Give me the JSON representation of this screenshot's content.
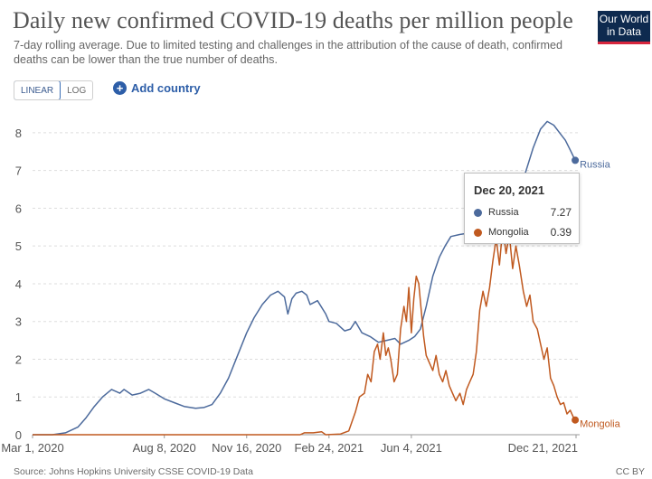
{
  "header": {
    "title": "Daily new confirmed COVID-19 deaths per million people",
    "subtitle": "7-day rolling average. Due to limited testing and challenges in the attribution of the cause of death, confirmed deaths can be lower than the true number of deaths.",
    "logo_line1": "Our World",
    "logo_line2": "in Data"
  },
  "controls": {
    "linear_label": "LINEAR",
    "log_label": "LOG",
    "add_country_label": "Add country"
  },
  "tooltip": {
    "date": "Dec 20, 2021",
    "rows": [
      {
        "name": "Russia",
        "value": "7.27",
        "color": "#4c6a9c"
      },
      {
        "name": "Mongolia",
        "value": "0.39",
        "color": "#c0591f"
      }
    ]
  },
  "footer": {
    "source": "Source: Johns Hopkins University CSSE COVID-19 Data",
    "license": "CC BY"
  },
  "chart_data": {
    "type": "line",
    "title": "Daily new confirmed COVID-19 deaths per million people",
    "xlabel": "",
    "ylabel": "",
    "ylim": [
      0,
      8.5
    ],
    "grid": "horizontal",
    "y_ticks": [
      0,
      1,
      2,
      3,
      4,
      5,
      6,
      7,
      8
    ],
    "x_ticks": [
      "Mar 1, 2020",
      "Aug 8, 2020",
      "Nov 16, 2020",
      "Feb 24, 2021",
      "Jun 4, 2021",
      "Dec 21, 2021"
    ],
    "x_tick_dates": [
      "2020-03-01",
      "2020-08-08",
      "2020-11-16",
      "2021-02-24",
      "2021-06-04",
      "2021-12-21"
    ],
    "x_range": [
      "2020-03-01",
      "2021-12-21"
    ],
    "series": [
      {
        "name": "Russia",
        "color": "#4c6a9c",
        "end_label": "Russia",
        "points": [
          [
            "2020-03-01",
            0
          ],
          [
            "2020-03-25",
            0.0
          ],
          [
            "2020-04-10",
            0.05
          ],
          [
            "2020-04-25",
            0.2
          ],
          [
            "2020-05-05",
            0.45
          ],
          [
            "2020-05-15",
            0.75
          ],
          [
            "2020-05-25",
            1.0
          ],
          [
            "2020-06-05",
            1.2
          ],
          [
            "2020-06-15",
            1.1
          ],
          [
            "2020-06-20",
            1.2
          ],
          [
            "2020-06-30",
            1.05
          ],
          [
            "2020-07-10",
            1.1
          ],
          [
            "2020-07-20",
            1.2
          ],
          [
            "2020-07-28",
            1.1
          ],
          [
            "2020-08-08",
            0.95
          ],
          [
            "2020-08-20",
            0.85
          ],
          [
            "2020-09-01",
            0.75
          ],
          [
            "2020-09-15",
            0.7
          ],
          [
            "2020-09-25",
            0.72
          ],
          [
            "2020-10-05",
            0.8
          ],
          [
            "2020-10-15",
            1.1
          ],
          [
            "2020-10-25",
            1.5
          ],
          [
            "2020-11-05",
            2.1
          ],
          [
            "2020-11-16",
            2.7
          ],
          [
            "2020-11-25",
            3.1
          ],
          [
            "2020-12-05",
            3.45
          ],
          [
            "2020-12-15",
            3.7
          ],
          [
            "2020-12-24",
            3.8
          ],
          [
            "2021-01-01",
            3.65
          ],
          [
            "2021-01-05",
            3.2
          ],
          [
            "2021-01-10",
            3.6
          ],
          [
            "2021-01-15",
            3.75
          ],
          [
            "2021-01-22",
            3.8
          ],
          [
            "2021-01-28",
            3.7
          ],
          [
            "2021-02-01",
            3.45
          ],
          [
            "2021-02-10",
            3.55
          ],
          [
            "2021-02-20",
            3.2
          ],
          [
            "2021-02-24",
            3.0
          ],
          [
            "2021-03-05",
            2.95
          ],
          [
            "2021-03-15",
            2.75
          ],
          [
            "2021-03-22",
            2.8
          ],
          [
            "2021-03-28",
            3.0
          ],
          [
            "2021-04-05",
            2.7
          ],
          [
            "2021-04-15",
            2.6
          ],
          [
            "2021-04-25",
            2.45
          ],
          [
            "2021-05-05",
            2.5
          ],
          [
            "2021-05-15",
            2.55
          ],
          [
            "2021-05-22",
            2.4
          ],
          [
            "2021-06-01",
            2.5
          ],
          [
            "2021-06-08",
            2.6
          ],
          [
            "2021-06-15",
            2.8
          ],
          [
            "2021-06-22",
            3.4
          ],
          [
            "2021-06-30",
            4.2
          ],
          [
            "2021-07-08",
            4.7
          ],
          [
            "2021-07-15",
            5.0
          ],
          [
            "2021-07-22",
            5.25
          ],
          [
            "2021-08-01",
            5.3
          ],
          [
            "2021-08-15",
            5.35
          ],
          [
            "2021-08-25",
            5.3
          ],
          [
            "2021-09-05",
            5.3
          ],
          [
            "2021-09-15",
            5.45
          ],
          [
            "2021-09-25",
            5.6
          ],
          [
            "2021-10-01",
            5.75
          ],
          [
            "2021-10-10",
            6.3
          ],
          [
            "2021-10-20",
            6.9
          ],
          [
            "2021-10-30",
            7.6
          ],
          [
            "2021-11-08",
            8.1
          ],
          [
            "2021-11-16",
            8.3
          ],
          [
            "2021-11-24",
            8.2
          ],
          [
            "2021-12-01",
            8.0
          ],
          [
            "2021-12-08",
            7.8
          ],
          [
            "2021-12-15",
            7.5
          ],
          [
            "2021-12-20",
            7.27
          ]
        ]
      },
      {
        "name": "Mongolia",
        "color": "#c0591f",
        "end_label": "Mongolia",
        "points": [
          [
            "2020-03-01",
            0
          ],
          [
            "2021-01-20",
            0.0
          ],
          [
            "2021-01-25",
            0.05
          ],
          [
            "2021-02-05",
            0.05
          ],
          [
            "2021-02-15",
            0.08
          ],
          [
            "2021-02-20",
            0.0
          ],
          [
            "2021-03-10",
            0.02
          ],
          [
            "2021-03-20",
            0.1
          ],
          [
            "2021-03-28",
            0.6
          ],
          [
            "2021-04-02",
            1.0
          ],
          [
            "2021-04-08",
            1.1
          ],
          [
            "2021-04-12",
            1.6
          ],
          [
            "2021-04-16",
            1.4
          ],
          [
            "2021-04-20",
            2.2
          ],
          [
            "2021-04-24",
            2.4
          ],
          [
            "2021-04-27",
            2.0
          ],
          [
            "2021-05-01",
            2.7
          ],
          [
            "2021-05-04",
            2.1
          ],
          [
            "2021-05-07",
            2.3
          ],
          [
            "2021-05-10",
            2.0
          ],
          [
            "2021-05-14",
            1.4
          ],
          [
            "2021-05-18",
            1.6
          ],
          [
            "2021-05-22",
            2.8
          ],
          [
            "2021-05-26",
            3.4
          ],
          [
            "2021-05-29",
            3.0
          ],
          [
            "2021-06-01",
            3.9
          ],
          [
            "2021-06-04",
            2.7
          ],
          [
            "2021-06-07",
            3.6
          ],
          [
            "2021-06-10",
            4.2
          ],
          [
            "2021-06-13",
            4.0
          ],
          [
            "2021-06-16",
            3.3
          ],
          [
            "2021-06-19",
            2.6
          ],
          [
            "2021-06-22",
            2.1
          ],
          [
            "2021-06-26",
            1.9
          ],
          [
            "2021-06-30",
            1.7
          ],
          [
            "2021-07-04",
            2.1
          ],
          [
            "2021-07-08",
            1.6
          ],
          [
            "2021-07-12",
            1.4
          ],
          [
            "2021-07-16",
            1.7
          ],
          [
            "2021-07-20",
            1.3
          ],
          [
            "2021-07-24",
            1.1
          ],
          [
            "2021-07-28",
            0.9
          ],
          [
            "2021-08-02",
            1.1
          ],
          [
            "2021-08-06",
            0.8
          ],
          [
            "2021-08-10",
            1.2
          ],
          [
            "2021-08-14",
            1.4
          ],
          [
            "2021-08-18",
            1.6
          ],
          [
            "2021-08-22",
            2.2
          ],
          [
            "2021-08-26",
            3.3
          ],
          [
            "2021-08-30",
            3.8
          ],
          [
            "2021-09-03",
            3.4
          ],
          [
            "2021-09-07",
            3.9
          ],
          [
            "2021-09-11",
            4.6
          ],
          [
            "2021-09-15",
            5.2
          ],
          [
            "2021-09-19",
            4.5
          ],
          [
            "2021-09-23",
            5.5
          ],
          [
            "2021-09-27",
            4.8
          ],
          [
            "2021-10-01",
            5.3
          ],
          [
            "2021-10-05",
            4.4
          ],
          [
            "2021-10-09",
            5.0
          ],
          [
            "2021-10-13",
            4.5
          ],
          [
            "2021-10-18",
            3.8
          ],
          [
            "2021-10-22",
            3.4
          ],
          [
            "2021-10-26",
            3.7
          ],
          [
            "2021-10-30",
            3.0
          ],
          [
            "2021-11-04",
            2.8
          ],
          [
            "2021-11-08",
            2.4
          ],
          [
            "2021-11-12",
            2.0
          ],
          [
            "2021-11-16",
            2.3
          ],
          [
            "2021-11-20",
            1.5
          ],
          [
            "2021-11-24",
            1.3
          ],
          [
            "2021-11-28",
            1.0
          ],
          [
            "2021-12-02",
            0.8
          ],
          [
            "2021-12-06",
            0.85
          ],
          [
            "2021-12-10",
            0.55
          ],
          [
            "2021-12-14",
            0.65
          ],
          [
            "2021-12-18",
            0.45
          ],
          [
            "2021-12-20",
            0.39
          ]
        ]
      }
    ]
  }
}
